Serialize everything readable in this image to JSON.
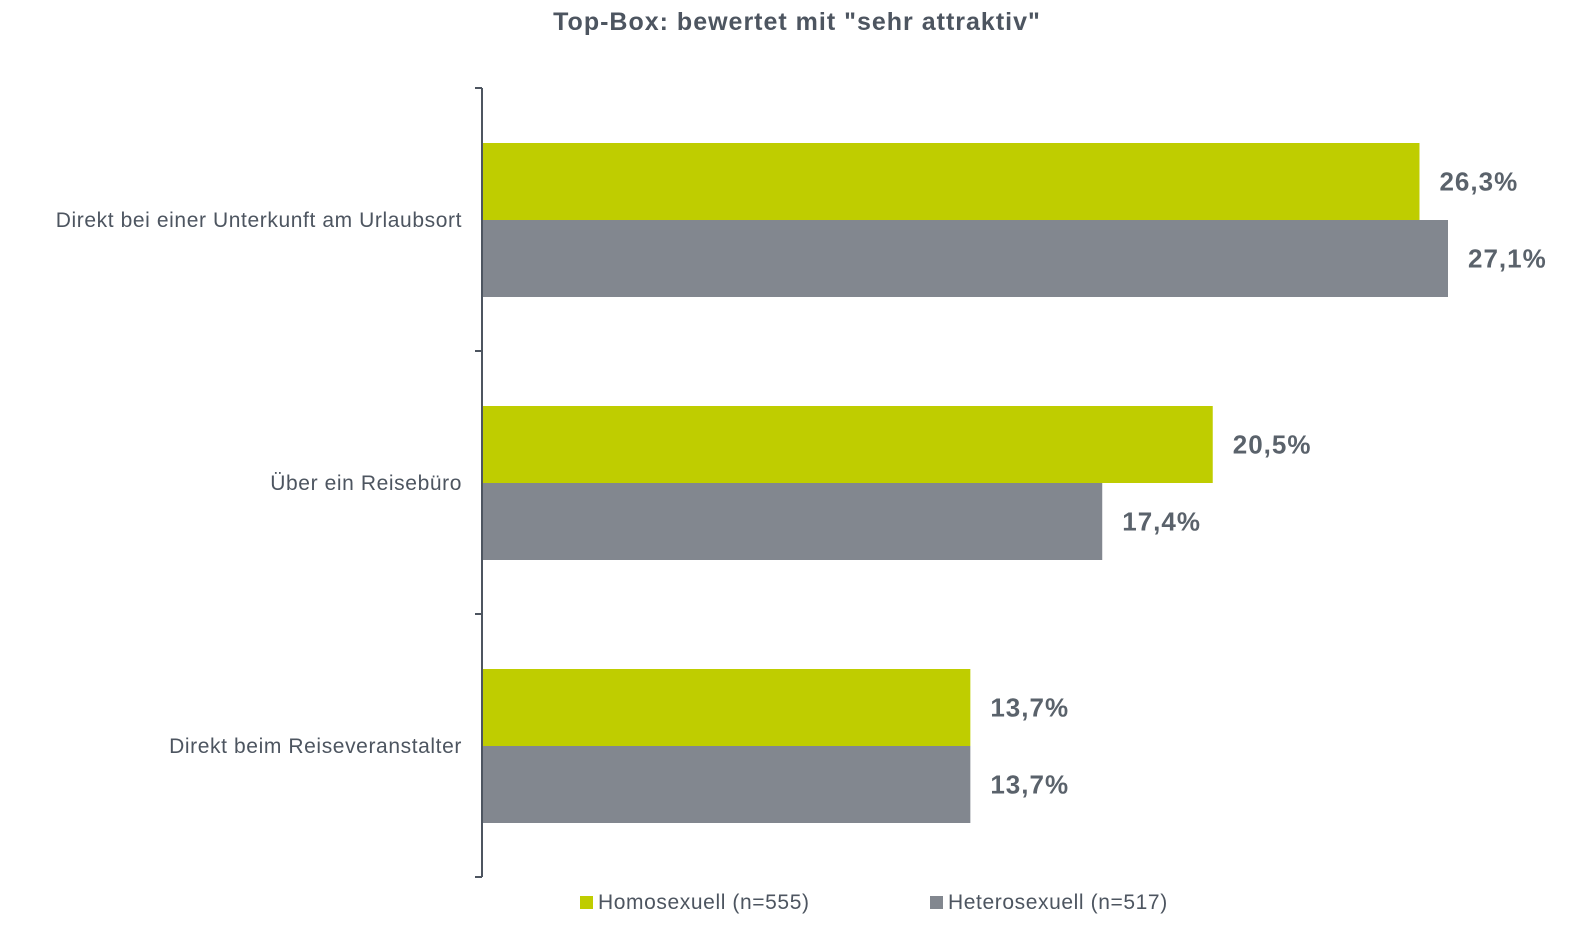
{
  "chart_data": {
    "type": "bar",
    "orientation": "horizontal",
    "title": "Top-Box: bewertet mit \"sehr attraktiv\"",
    "categories": [
      "Direkt bei einer Unterkunft am Urlaubsort",
      "Über ein Reisebüro",
      "Direkt beim Reiseveranstalter"
    ],
    "series": [
      {
        "name": "Homosexuell (n=555)",
        "color": "#bfcd00",
        "values": [
          26.3,
          20.5,
          13.7
        ],
        "labels": [
          "26,3%",
          "20,5%",
          "13,7%"
        ]
      },
      {
        "name": "Heterosexuell (n=517)",
        "color": "#82878f",
        "values": [
          27.1,
          17.4,
          13.7
        ],
        "labels": [
          "27,1%",
          "17,4%",
          "13,7%"
        ]
      }
    ],
    "xlim": [
      0,
      30
    ],
    "grid": false,
    "legend_position": "bottom"
  }
}
